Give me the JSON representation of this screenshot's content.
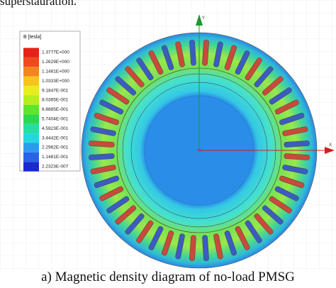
{
  "header": {
    "text": "superstauration."
  },
  "legend": {
    "title": "B [tesla]",
    "values": [
      "1.3777E+000",
      "1.2629E+000",
      "1.1481E+000",
      "1.0333E+000",
      "9.1847E-001",
      "8.0365E-001",
      "6.8885E-001",
      "5.7404E-001",
      "4.5923E-001",
      "3.4442E-001",
      "2.2962E-001",
      "1.1481E-001",
      "2.2323E-007"
    ],
    "colors": [
      "#e8201a",
      "#f04a1c",
      "#f4841c",
      "#f8c41c",
      "#e6ee1c",
      "#b4ee1c",
      "#5ee62a",
      "#2cd84c",
      "#22e0a0",
      "#22d8e0",
      "#2a9cf0",
      "#2a62e8",
      "#1a2ad0"
    ]
  },
  "axes": {
    "y": "Y",
    "x": "X"
  },
  "caption": "a) Magnetic density diagram of no-load PMSG"
}
